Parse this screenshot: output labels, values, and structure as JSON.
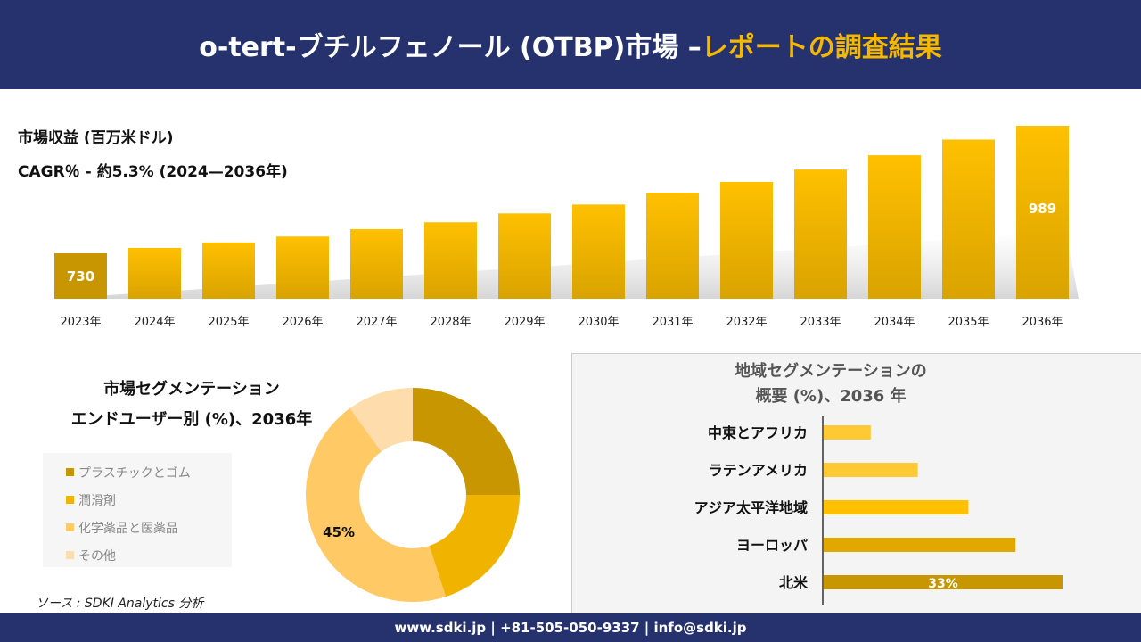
{
  "header": {
    "title_main": "o-tert-ブチルフェノール (OTBP)市場 –",
    "title_accent": "レポートの調査結果"
  },
  "summary": {
    "revenue_label": "市場収益 (百万米ドル)",
    "cagr_label": "CAGR％ - 約5.3% (2024—2036年)"
  },
  "colors": {
    "header_bg": "#25326e",
    "accent": "#f5b800"
  },
  "chart_data": [
    {
      "type": "bar",
      "title": "市場収益 (百万米ドル)",
      "categories": [
        "2023年",
        "2024年",
        "2025年",
        "2026年",
        "2027年",
        "2028年",
        "2029年",
        "2030年",
        "2031年",
        "2032年",
        "2033年",
        "2034年",
        "2035年",
        "2036年"
      ],
      "values": [
        730,
        741,
        752,
        764,
        779,
        793,
        811,
        829,
        853,
        875,
        900,
        929,
        961,
        989
      ],
      "data_labels": {
        "0": "730",
        "13": "989"
      }
    },
    {
      "type": "pie",
      "title": "市場セグメンテーション エンドユーザー別 (%)、2036年",
      "title_lines": [
        "市場セグメンテーション",
        "エンドユーザー別 (%)、2036年"
      ],
      "categories": [
        "プラスチックとゴム",
        "潤滑剤",
        "化学薬品と医薬品",
        "その他"
      ],
      "values": [
        25,
        20,
        45,
        10
      ],
      "colors": [
        "#c89600",
        "#f0b400",
        "#ffc966",
        "#ffdcab"
      ],
      "data_labels": {
        "2": "45%"
      },
      "legend": "left"
    },
    {
      "type": "bar",
      "orientation": "horizontal",
      "title": "地域セグメンテーションの 概要 (%)、2036 年",
      "title_lines": [
        "地域セグメンテーションの",
        "概要 (%)、2036 年"
      ],
      "categories": [
        "中東とアフリカ",
        "ラテンアメリカ",
        "アジア太平洋地域",
        "ヨーロッパ",
        "北米"
      ],
      "values": [
        6.5,
        13,
        20,
        26.5,
        33
      ],
      "colors": [
        "#ffc933",
        "#ffc933",
        "#ffc000",
        "#e0a800",
        "#c89600"
      ],
      "data_labels": {
        "4": "33%"
      }
    }
  ],
  "source": "ソース : SDKI Analytics 分析",
  "footer": "www.sdki.jp | +81-505-050-9337 | info@sdki.jp"
}
